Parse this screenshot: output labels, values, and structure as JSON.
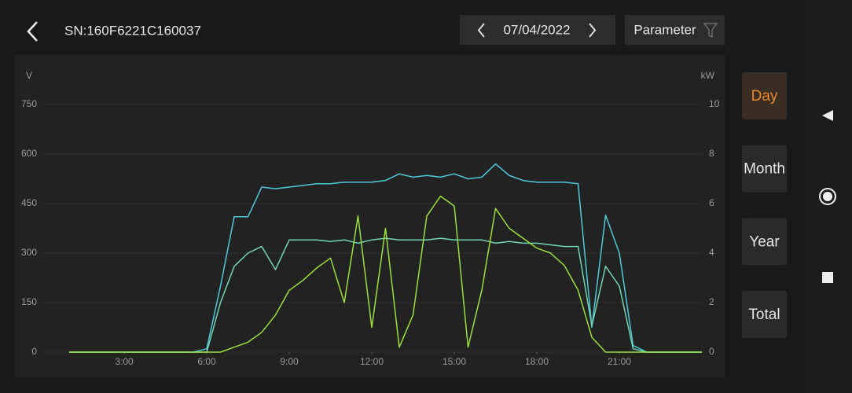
{
  "header": {
    "title": "SN:160F6221C160037",
    "date": "07/04/2022",
    "filter": "Parameter"
  },
  "tabs": [
    "Day",
    "Month",
    "Year",
    "Total"
  ],
  "chart_data": {
    "type": "line",
    "y_label": "V",
    "y2_label": "kW",
    "x": [
      1,
      1.5,
      2,
      2.5,
      3,
      3.5,
      4,
      4.5,
      5,
      5.5,
      6,
      6.5,
      7,
      7.5,
      8,
      8.5,
      9,
      9.5,
      10,
      10.5,
      11,
      11.5,
      12,
      12.5,
      13,
      13.5,
      14,
      14.5,
      15,
      15.5,
      16,
      16.5,
      17,
      17.5,
      18,
      18.5,
      19,
      19.5,
      20,
      20.5,
      21,
      21.5,
      22,
      22.5,
      23,
      23.5,
      24
    ],
    "series": [
      {
        "color": "#4fc8dc",
        "values": [
          0,
          0,
          0,
          0,
          0,
          0,
          0,
          0,
          0,
          0,
          10,
          200,
          410,
          410,
          500,
          495,
          500,
          505,
          510,
          510,
          515,
          515,
          515,
          520,
          540,
          530,
          535,
          530,
          540,
          525,
          530,
          570,
          535,
          520,
          515,
          515,
          515,
          510,
          75,
          415,
          300,
          20,
          0,
          0,
          0,
          0,
          0
        ]
      },
      {
        "color": "#6fd6b0",
        "values": [
          0,
          0,
          0,
          0,
          0,
          0,
          0,
          0,
          0,
          0,
          0,
          150,
          260,
          300,
          320,
          250,
          340,
          340,
          340,
          335,
          340,
          330,
          340,
          345,
          340,
          340,
          340,
          345,
          340,
          340,
          340,
          330,
          335,
          330,
          330,
          325,
          320,
          320,
          80,
          260,
          200,
          10,
          0,
          0,
          0,
          0,
          0
        ]
      },
      {
        "color": "#9be03c",
        "axis": "y2",
        "values": [
          0,
          0,
          0,
          0,
          0,
          0,
          0,
          0,
          0,
          0,
          0,
          0,
          0.2,
          0.4,
          0.8,
          1.5,
          2.5,
          2.9,
          3.4,
          3.8,
          2.0,
          5.5,
          1.0,
          5.0,
          0.2,
          1.5,
          5.5,
          6.3,
          5.9,
          0.2,
          2.5,
          5.8,
          5.0,
          4.6,
          4.2,
          4.0,
          3.5,
          2.5,
          0.6,
          0,
          0,
          0,
          0,
          0,
          0,
          0,
          0
        ]
      }
    ],
    "xlim": [
      0,
      24
    ],
    "xticks": [
      {
        "value": 3,
        "label": "3:00"
      },
      {
        "value": 6,
        "label": "6:00"
      },
      {
        "value": 9,
        "label": "9:00"
      },
      {
        "value": 12,
        "label": "12:00"
      },
      {
        "value": 15,
        "label": "15:00"
      },
      {
        "value": 18,
        "label": "18:00"
      },
      {
        "value": 21,
        "label": "21:00"
      }
    ],
    "ylim": [
      0,
      750
    ],
    "yticks": [
      0,
      150,
      300,
      450,
      600,
      750
    ],
    "y2lim": [
      0,
      10
    ],
    "y2ticks": [
      0,
      2,
      4,
      6,
      8,
      10
    ],
    "grid": true
  }
}
